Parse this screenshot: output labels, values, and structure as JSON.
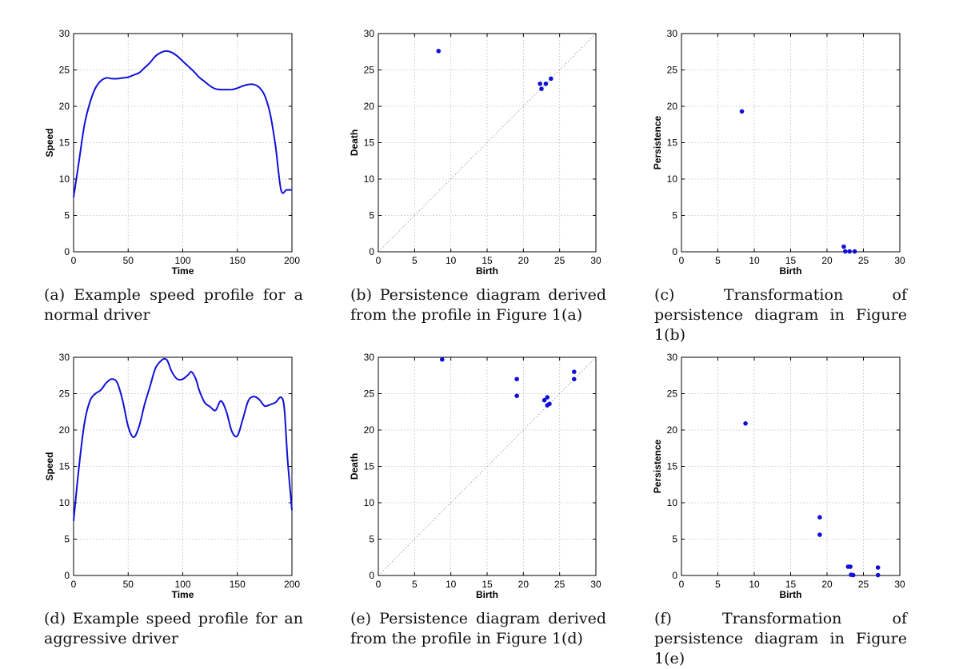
{
  "chart_data": [
    {
      "id": "a",
      "type": "line",
      "xlabel": "Time",
      "ylabel": "Speed",
      "xlim": [
        0,
        200
      ],
      "ylim": [
        0,
        30
      ],
      "xticks": [
        0,
        50,
        100,
        150,
        200
      ],
      "yticks": [
        0,
        5,
        10,
        15,
        20,
        25,
        30
      ],
      "grid": true,
      "line_color": "#1010d8",
      "x": [
        0,
        5,
        10,
        15,
        20,
        25,
        30,
        35,
        40,
        45,
        50,
        55,
        60,
        65,
        70,
        75,
        80,
        85,
        90,
        95,
        100,
        105,
        110,
        115,
        120,
        125,
        130,
        135,
        140,
        145,
        150,
        155,
        160,
        165,
        170,
        175,
        180,
        185,
        190,
        195,
        200
      ],
      "y": [
        7.5,
        12.5,
        17.5,
        20.5,
        22.5,
        23.5,
        23.9,
        23.8,
        23.8,
        23.9,
        24.0,
        24.3,
        24.6,
        25.3,
        26.0,
        26.9,
        27.4,
        27.6,
        27.4,
        26.9,
        26.2,
        25.5,
        24.8,
        24.0,
        23.4,
        22.8,
        22.4,
        22.3,
        22.3,
        22.3,
        22.5,
        22.8,
        23.0,
        23.0,
        22.6,
        21.5,
        19.0,
        14.5,
        8.5,
        8.5,
        8.5
      ],
      "caption": "(a) Example speed profile for a normal driver"
    },
    {
      "id": "b",
      "type": "scatter",
      "xlabel": "Birth",
      "ylabel": "Death",
      "xlim": [
        0,
        30
      ],
      "ylim": [
        0,
        30
      ],
      "xticks": [
        0,
        5,
        10,
        15,
        20,
        25,
        30
      ],
      "yticks": [
        0,
        5,
        10,
        15,
        20,
        25,
        30
      ],
      "grid": true,
      "diagonal": true,
      "marker_color": "#1010d8",
      "points": [
        [
          8.3,
          27.6
        ],
        [
          22.3,
          23.1
        ],
        [
          22.5,
          22.4
        ],
        [
          23.1,
          23.1
        ],
        [
          23.8,
          23.8
        ]
      ],
      "caption": "(b) Persistence diagram derived from the profile in Figure 1(a)"
    },
    {
      "id": "c",
      "type": "scatter",
      "xlabel": "Birth",
      "ylabel": "Persistence",
      "xlim": [
        0,
        30
      ],
      "ylim": [
        0,
        30
      ],
      "xticks": [
        0,
        5,
        10,
        15,
        20,
        25,
        30
      ],
      "yticks": [
        0,
        5,
        10,
        15,
        20,
        25,
        30
      ],
      "grid": true,
      "diagonal": false,
      "marker_color": "#1010d8",
      "points": [
        [
          8.3,
          19.3
        ],
        [
          22.3,
          0.7
        ],
        [
          22.5,
          0.05
        ],
        [
          23.1,
          0.05
        ],
        [
          23.8,
          0.05
        ]
      ],
      "caption": "(c) Transformation of persistence diagram in Figure 1(b)"
    },
    {
      "id": "d",
      "type": "line",
      "xlabel": "Time",
      "ylabel": "Speed",
      "xlim": [
        0,
        200
      ],
      "ylim": [
        0,
        30
      ],
      "xticks": [
        0,
        50,
        100,
        150,
        200
      ],
      "yticks": [
        0,
        5,
        10,
        15,
        20,
        25,
        30
      ],
      "grid": true,
      "line_color": "#1010d8",
      "x": [
        0,
        5,
        10,
        15,
        20,
        25,
        30,
        35,
        40,
        45,
        50,
        55,
        60,
        65,
        70,
        75,
        80,
        83,
        86,
        90,
        95,
        100,
        105,
        108,
        112,
        115,
        120,
        125,
        130,
        135,
        140,
        145,
        150,
        155,
        160,
        165,
        170,
        175,
        180,
        185,
        190,
        193,
        196,
        200
      ],
      "y": [
        7.5,
        15.0,
        21.0,
        24.0,
        25.0,
        25.5,
        26.5,
        27.0,
        26.5,
        24.0,
        20.5,
        19.0,
        20.5,
        23.5,
        26.0,
        28.5,
        29.5,
        29.8,
        29.5,
        28.0,
        27.0,
        27.0,
        27.6,
        28.0,
        27.0,
        25.5,
        23.8,
        23.2,
        22.7,
        24.0,
        22.5,
        19.8,
        19.2,
        21.5,
        24.0,
        24.6,
        24.2,
        23.3,
        23.5,
        23.8,
        24.5,
        23.0,
        16.0,
        9.0
      ],
      "caption": "(d) Example speed profile for an aggressive driver"
    },
    {
      "id": "e",
      "type": "scatter",
      "xlabel": "Birth",
      "ylabel": "Death",
      "xlim": [
        0,
        30
      ],
      "ylim": [
        0,
        30
      ],
      "xticks": [
        0,
        5,
        10,
        15,
        20,
        25,
        30
      ],
      "yticks": [
        0,
        5,
        10,
        15,
        20,
        25,
        30
      ],
      "grid": true,
      "diagonal": true,
      "marker_color": "#1010d8",
      "points": [
        [
          8.8,
          29.7
        ],
        [
          19.1,
          27.0
        ],
        [
          19.1,
          24.7
        ],
        [
          22.9,
          24.1
        ],
        [
          23.3,
          24.5
        ],
        [
          23.3,
          23.4
        ],
        [
          23.6,
          23.6
        ],
        [
          27.0,
          28.0
        ],
        [
          27.0,
          27.0
        ]
      ],
      "caption": "(e) Persistence diagram derived from the profile in Figure 1(d)"
    },
    {
      "id": "f",
      "type": "scatter",
      "xlabel": "Birth",
      "ylabel": "Persistence",
      "xlim": [
        0,
        30
      ],
      "ylim": [
        0,
        30
      ],
      "xticks": [
        0,
        5,
        10,
        15,
        20,
        25,
        30
      ],
      "yticks": [
        0,
        5,
        10,
        15,
        20,
        25,
        30
      ],
      "grid": true,
      "diagonal": false,
      "marker_color": "#1010d8",
      "points": [
        [
          8.8,
          20.9
        ],
        [
          19.0,
          8.0
        ],
        [
          19.0,
          5.6
        ],
        [
          22.9,
          1.2
        ],
        [
          23.2,
          1.2
        ],
        [
          23.3,
          0.1
        ],
        [
          23.6,
          0.05
        ],
        [
          27.0,
          1.1
        ],
        [
          27.0,
          0.05
        ]
      ],
      "caption": "(f) Transformation of persistence diagram in Figure 1(e)"
    }
  ]
}
